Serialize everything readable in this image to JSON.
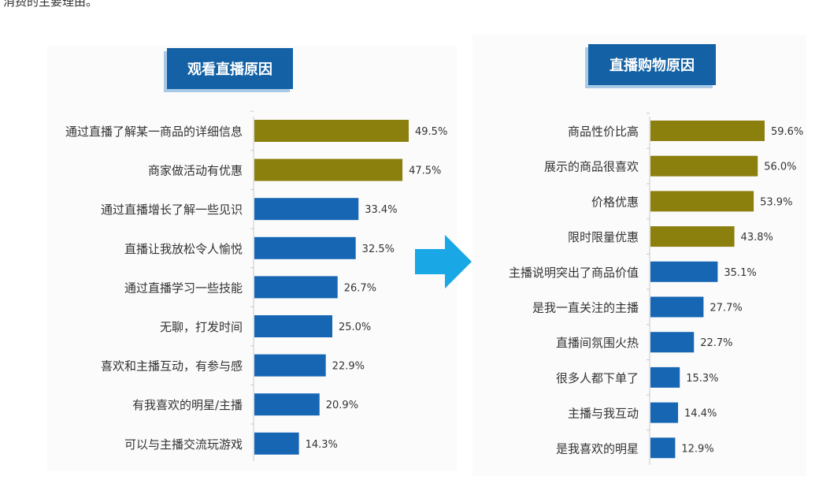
{
  "page_text": {
    "intro_fragment": "消费的主要理由。"
  },
  "colors": {
    "olive": "#8b7f0e",
    "blue": "#1666b4",
    "title_bg": "#1462a5",
    "arrow": "#19a7e6"
  },
  "chart_data": [
    {
      "type": "bar",
      "orientation": "horizontal",
      "title": "观看直播原因",
      "categories": [
        "通过直播了解某一商品的详细信息",
        "商家做活动有优惠",
        "通过直播增长了解一些见识",
        "直播让我放松令人愉悦",
        "通过直播学习一些技能",
        "无聊，打发时间",
        "喜欢和主播互动，有参与感",
        "有我喜欢的明星/主播",
        "可以与主播交流玩游戏"
      ],
      "values": [
        49.5,
        47.5,
        33.4,
        32.5,
        26.7,
        25.0,
        22.9,
        20.9,
        14.3
      ],
      "value_labels": [
        "49.5%",
        "47.5%",
        "33.4%",
        "32.5%",
        "26.7%",
        "25.0%",
        "22.9%",
        "20.9%",
        "14.3%"
      ],
      "highlight_count": 2,
      "xlim": [
        0,
        60
      ]
    },
    {
      "type": "bar",
      "orientation": "horizontal",
      "title": "直播购物原因",
      "categories": [
        "商品性价比高",
        "展示的商品很喜欢",
        "价格优惠",
        "限时限量优惠",
        "主播说明突出了商品价值",
        "是我一直关注的主播",
        "直播间氛围火热",
        "很多人都下单了",
        "主播与我互动",
        "是我喜欢的明星"
      ],
      "values": [
        59.6,
        56.0,
        53.9,
        43.8,
        35.1,
        27.7,
        22.7,
        15.3,
        14.4,
        12.9
      ],
      "value_labels": [
        "59.6%",
        "56.0%",
        "53.9%",
        "43.8%",
        "35.1%",
        "27.7%",
        "22.7%",
        "15.3%",
        "14.4%",
        "12.9%"
      ],
      "highlight_count": 4,
      "xlim": [
        0,
        67
      ]
    }
  ]
}
